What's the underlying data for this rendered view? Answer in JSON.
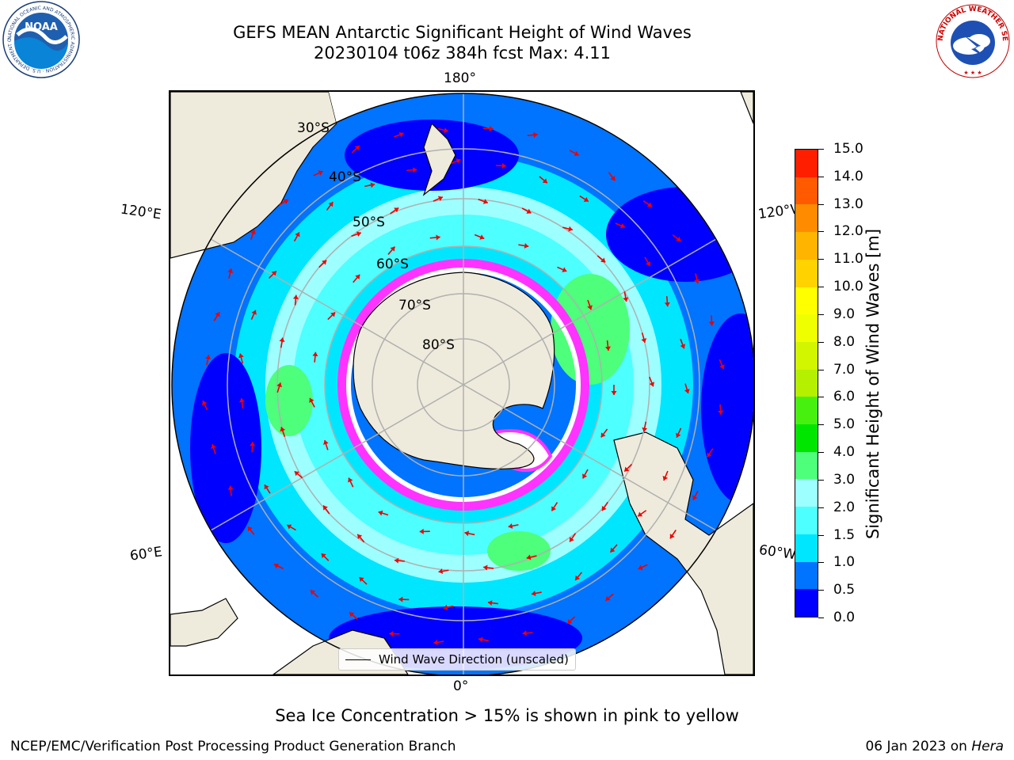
{
  "header": {
    "title_line1": "GEFS MEAN Antarctic Significant Height of Wind Waves",
    "title_line2": "20230104 t06z 384h fcst   Max: 4.11"
  },
  "map": {
    "projection": "south-polar-stereographic",
    "longitude_labels": {
      "top": "180°",
      "bottom": "0°",
      "upper_left": "120°E",
      "upper_right": "120°W",
      "lower_left": "60°E",
      "lower_right": "60°W"
    },
    "latitude_labels": [
      "30°S",
      "40°S",
      "50°S",
      "60°S",
      "70°S",
      "80°S"
    ],
    "legend_label": "Wind Wave Direction (unscaled)",
    "colors": {
      "land": "#efebdc",
      "sea_ice": "#ff33ff",
      "arrows": "#ee0000",
      "graticule": "#b0b0b0"
    }
  },
  "colorbar": {
    "label": "Significant Height of Wind Waves [m]",
    "tick_labels": [
      "0.0",
      "0.5",
      "1.0",
      "1.5",
      "2.0",
      "3.0",
      "4.0",
      "5.0",
      "6.0",
      "7.0",
      "8.0",
      "9.0",
      "10.0",
      "11.0",
      "12.0",
      "13.0",
      "14.0",
      "15.0"
    ],
    "colors": [
      "#0000ff",
      "#0073ff",
      "#00e6ff",
      "#4dffff",
      "#9dffff",
      "#4dff7a",
      "#00e600",
      "#48f010",
      "#b4f000",
      "#d2f500",
      "#f0ff00",
      "#ffff00",
      "#ffd200",
      "#ffb400",
      "#ff8c00",
      "#ff5a00",
      "#ff1e00"
    ]
  },
  "notes": {
    "sea_ice": "Sea Ice Concentration > 15% is shown in pink to yellow"
  },
  "footer": {
    "left": "NCEP/EMC/Verification Post Processing Product Generation Branch",
    "right_date": "06 Jan 2023 on",
    "right_machine": "Hera"
  },
  "logos": {
    "noaa": "NOAA",
    "noaa_ring": "NATIONAL OCEANIC AND ATMOSPHERIC ADMINISTRATION · U.S. DEPARTMENT OF COMMERCE",
    "nws_ring": "NATIONAL WEATHER SERVICE"
  }
}
